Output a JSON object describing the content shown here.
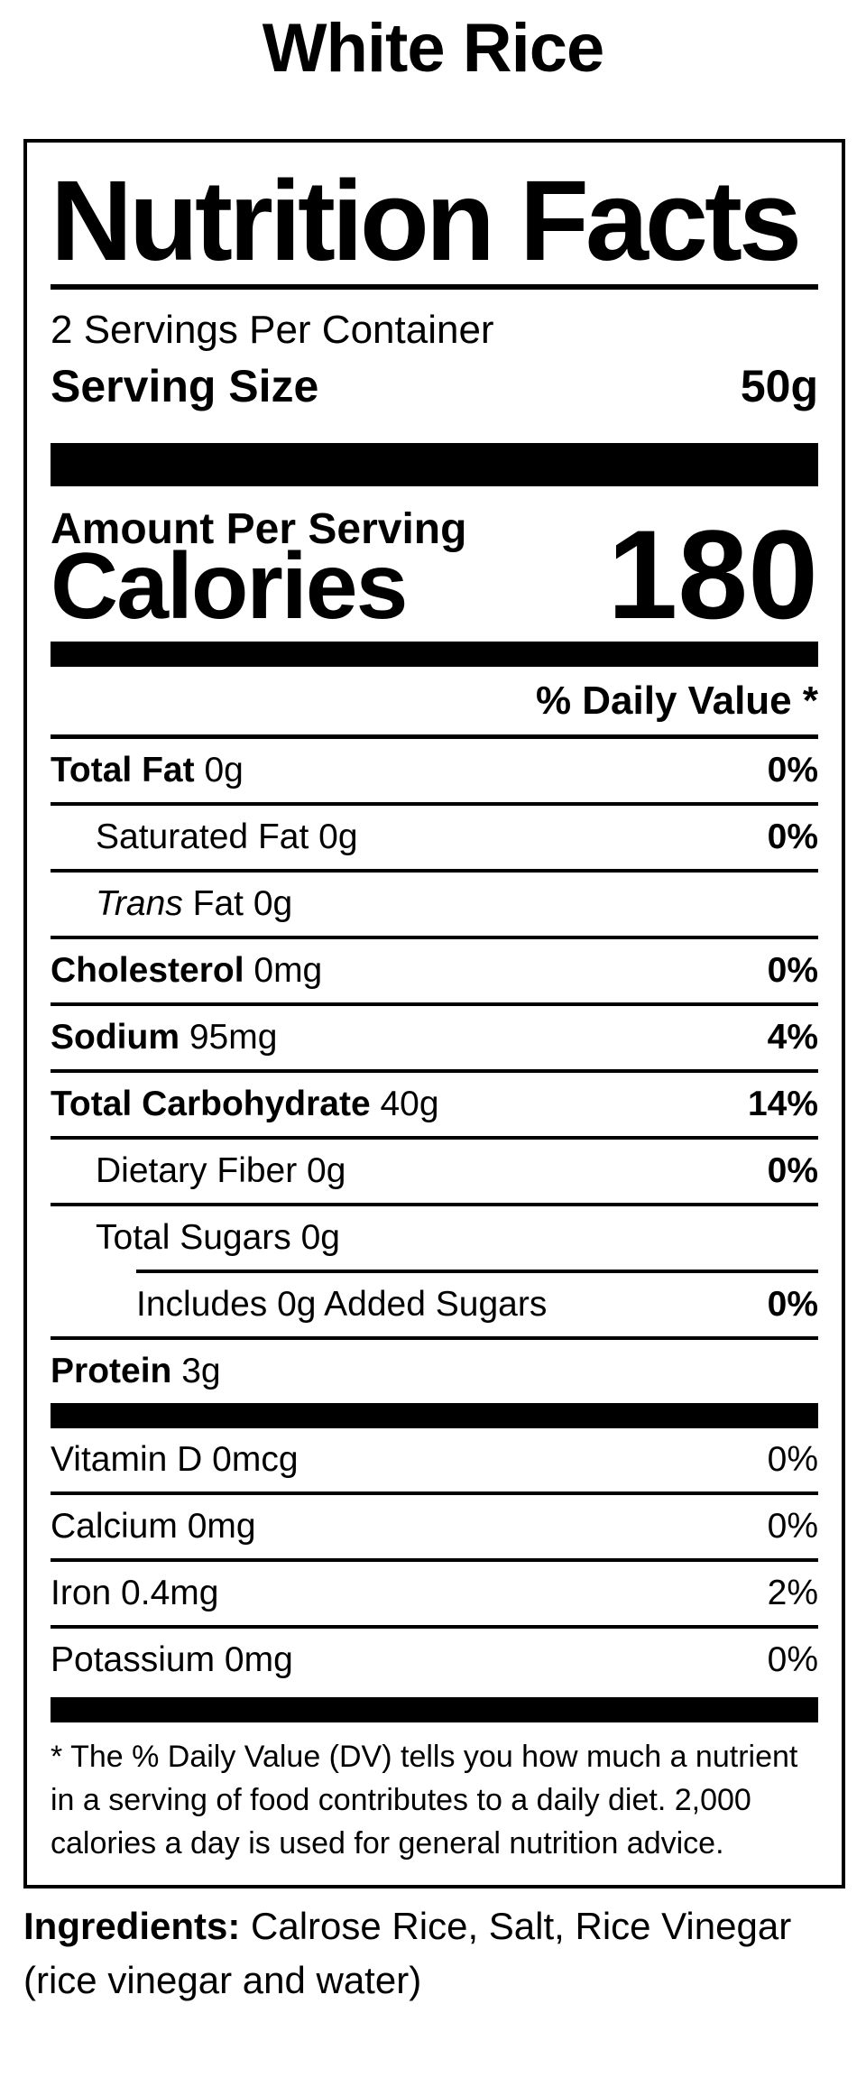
{
  "page_title": "White Rice",
  "colors": {
    "text": "#000000",
    "background": "#ffffff"
  },
  "label": {
    "title": "Nutrition Facts",
    "servings_per_container": "2 Servings Per Container",
    "serving_size_label": "Serving Size",
    "serving_size_value": "50g",
    "amount_per_serving": "Amount Per Serving",
    "calories_label": "Calories",
    "calories_value": "180",
    "daily_value_header": "% Daily Value *",
    "nutrients": [
      {
        "parts": [
          {
            "text": "Total Fat",
            "bold": true
          },
          {
            "text": " 0g"
          }
        ],
        "indent": 0,
        "percent": "0%",
        "percent_bold": true,
        "divider_after": "full"
      },
      {
        "parts": [
          {
            "text": "Saturated Fat 0g"
          }
        ],
        "indent": 1,
        "percent": "0%",
        "percent_bold": true,
        "divider_after": "full"
      },
      {
        "parts": [
          {
            "text": "Trans",
            "italic": true
          },
          {
            "text": " Fat 0g"
          }
        ],
        "indent": 1,
        "percent": "",
        "percent_bold": false,
        "divider_after": "full"
      },
      {
        "parts": [
          {
            "text": "Cholesterol",
            "bold": true
          },
          {
            "text": " 0mg"
          }
        ],
        "indent": 0,
        "percent": "0%",
        "percent_bold": true,
        "divider_after": "full"
      },
      {
        "parts": [
          {
            "text": "Sodium",
            "bold": true
          },
          {
            "text": " 95mg"
          }
        ],
        "indent": 0,
        "percent": "4%",
        "percent_bold": true,
        "divider_after": "full"
      },
      {
        "parts": [
          {
            "text": "Total Carbohydrate",
            "bold": true
          },
          {
            "text": " 40g"
          }
        ],
        "indent": 0,
        "percent": "14%",
        "percent_bold": true,
        "divider_after": "full"
      },
      {
        "parts": [
          {
            "text": "Dietary Fiber 0g"
          }
        ],
        "indent": 1,
        "percent": "0%",
        "percent_bold": true,
        "divider_after": "full"
      },
      {
        "parts": [
          {
            "text": "Total Sugars 0g"
          }
        ],
        "indent": 1,
        "percent": "",
        "percent_bold": false,
        "divider_after": "indented"
      },
      {
        "parts": [
          {
            "text": "Includes 0g Added Sugars"
          }
        ],
        "indent": 2,
        "percent": "0%",
        "percent_bold": true,
        "divider_after": "full"
      },
      {
        "parts": [
          {
            "text": "Protein",
            "bold": true
          },
          {
            "text": " 3g"
          }
        ],
        "indent": 0,
        "percent": "",
        "percent_bold": false,
        "divider_after": "none"
      }
    ],
    "vitamins": [
      {
        "name": "Vitamin D 0mcg",
        "percent": "0%"
      },
      {
        "name": "Calcium 0mg",
        "percent": "0%"
      },
      {
        "name": "Iron 0.4mg",
        "percent": "2%"
      },
      {
        "name": "Potassium 0mg",
        "percent": "0%"
      }
    ],
    "footnote": "* The % Daily Value (DV) tells you how much a nutrient in a serving of food contributes to a daily diet. 2,000 calories a day is used for general nutrition advice."
  },
  "ingredients": {
    "label": "Ingredients:",
    "text": " Calrose Rice, Salt, Rice Vinegar (rice vinegar and water)"
  }
}
